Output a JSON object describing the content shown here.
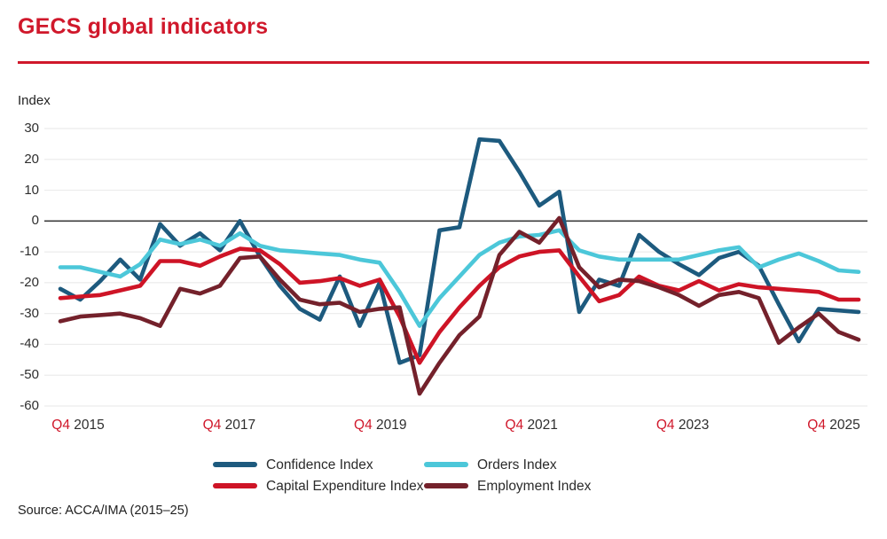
{
  "page": {
    "title": "GECS global indicators",
    "source": "Source: ACCA/IMA (2015–25)"
  },
  "colors": {
    "accent_red": "#d0182b",
    "confidence": "#1d5a7e",
    "capex": "#ce1426",
    "orders": "#4cc7d9",
    "employment": "#74212b",
    "grid": "#ececec",
    "zero_line": "#3d3d3d",
    "text": "#2e2e2e"
  },
  "chart_data": {
    "type": "line",
    "title": "GECS global indicators",
    "y_axis": {
      "label": "Index",
      "min": -60,
      "max": 30,
      "tick_step": 10,
      "ticks": [
        30,
        20,
        10,
        0,
        -10,
        -20,
        -30,
        -40,
        -50,
        -60
      ],
      "grid": true,
      "zero_line": true
    },
    "x_axis": {
      "unit": "quarterly",
      "points": 41,
      "first_point": "Q4 2015",
      "last_point": "Q4 2025",
      "labels": [
        {
          "quarter": "Q4",
          "year": "2015",
          "index": 0
        },
        {
          "quarter": "Q4",
          "year": "2017",
          "index": 8
        },
        {
          "quarter": "Q4",
          "year": "2019",
          "index": 16
        },
        {
          "quarter": "Q4",
          "year": "2021",
          "index": 24
        },
        {
          "quarter": "Q4",
          "year": "2023",
          "index": 32
        },
        {
          "quarter": "Q4",
          "year": "2025",
          "index": 40
        }
      ]
    },
    "series": [
      {
        "name": "Confidence Index",
        "color_key": "confidence",
        "values": [
          -22,
          -25.5,
          -19.5,
          -12.5,
          -19,
          -1,
          -8,
          -4,
          -9.5,
          0,
          -11.5,
          -21,
          -28.5,
          -32,
          -18,
          -34,
          -20,
          -46,
          -43.5,
          -3,
          -2,
          26.5,
          26,
          16,
          5,
          9.5,
          -29.5,
          -19,
          -21,
          -4.5,
          -10,
          -14,
          -17.5,
          -12,
          -10,
          -14.5,
          -27,
          -39,
          -28.5,
          -29,
          -29.5
        ]
      },
      {
        "name": "Capital Expenditure Index",
        "color_key": "capex",
        "values": [
          -25,
          -24.5,
          -24,
          -22.5,
          -21,
          -13,
          -13,
          -14.5,
          -11.5,
          -9,
          -9.5,
          -14,
          -20,
          -19.5,
          -18.5,
          -21,
          -19,
          -31,
          -46,
          -36,
          -28,
          -21,
          -15,
          -11.5,
          -10,
          -9.5,
          -18,
          -26,
          -24,
          -18,
          -21,
          -22.5,
          -19.5,
          -22.5,
          -20.5,
          -21.5,
          -22,
          -22.5,
          -23,
          -25.5,
          -25.5
        ]
      },
      {
        "name": "Orders Index",
        "color_key": "orders",
        "values": [
          -15,
          -15,
          -16.5,
          -18,
          -14,
          -6,
          -7.5,
          -6,
          -8,
          -4,
          -8,
          -9.5,
          -10,
          -10.5,
          -11,
          -12.5,
          -13.5,
          -23,
          -34,
          -25,
          -18,
          -11,
          -7,
          -5,
          -4.5,
          -3,
          -9.5,
          -11.5,
          -12.5,
          -12.5,
          -12.5,
          -12.5,
          -11,
          -9.5,
          -8.5,
          -15,
          -12.5,
          -10.5,
          -13,
          -16,
          -16.5
        ]
      },
      {
        "name": "Employment Index",
        "color_key": "employment",
        "values": [
          -32.5,
          -31,
          -30.5,
          -30,
          -31.5,
          -34,
          -22,
          -23.5,
          -21,
          -12,
          -11.5,
          -19,
          -25.5,
          -27,
          -26.5,
          -29.5,
          -28.5,
          -28,
          -56,
          -46,
          -37,
          -31,
          -11,
          -3.5,
          -7,
          1,
          -15,
          -21.5,
          -19,
          -19.5,
          -21.5,
          -24,
          -27.5,
          -24,
          -23,
          -25,
          -39.5,
          -34.5,
          -30,
          -36,
          -38.5
        ]
      }
    ],
    "legend": {
      "position": "bottom",
      "columns": [
        [
          "Confidence Index",
          "Capital Expenditure Index"
        ],
        [
          "Orders Index",
          "Employment Index"
        ]
      ]
    }
  }
}
